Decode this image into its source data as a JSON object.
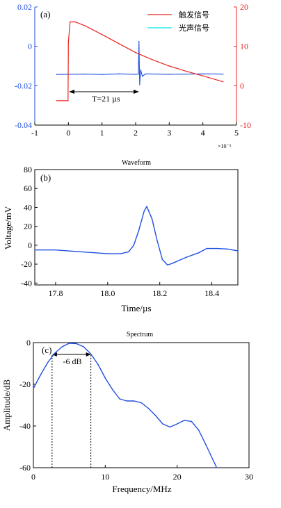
{
  "chart_data": [
    {
      "type": "line",
      "panel_label": "(a)",
      "x_ticks": [
        "-1",
        "0",
        "1",
        "2",
        "3",
        "4",
        "5"
      ],
      "x_exponent": "×10⁻⁵",
      "xlim": [
        -1,
        5
      ],
      "y_left_ticks": [
        "0.02",
        "0",
        "-0.02",
        "-0.04"
      ],
      "ylim_left": [
        -0.04,
        0.02
      ],
      "y_right_ticks": [
        "20",
        "10",
        "0",
        "-10"
      ],
      "ylim_right": [
        -10,
        20
      ],
      "annotation": "T=21 µs",
      "series": [
        {
          "name": "触发信号",
          "color": "#e8231e",
          "axis": "right",
          "x": [
            -0.35,
            -0.01,
            0.0,
            0.05,
            0.2,
            0.5,
            1.0,
            1.5,
            2.0,
            2.5,
            3.0,
            3.5,
            4.0,
            4.6
          ],
          "y": [
            -3.8,
            -3.8,
            11.0,
            16.2,
            16.2,
            15.2,
            13.0,
            10.7,
            8.4,
            6.6,
            5.0,
            3.7,
            2.5,
            1.0
          ]
        },
        {
          "name": "光声信号",
          "color": "#00e5ee",
          "axis": "left",
          "x": [
            -0.35,
            0.5,
            1.0,
            1.5,
            2.0,
            2.08,
            2.1,
            2.12,
            2.15,
            2.2,
            2.3,
            3.0,
            4.0,
            4.6
          ],
          "y": [
            -0.0143,
            -0.0141,
            -0.0143,
            -0.014,
            -0.0142,
            -0.0141,
            0.0025,
            -0.0195,
            -0.012,
            -0.0152,
            -0.014,
            -0.0142,
            -0.014,
            -0.0141
          ]
        }
      ]
    },
    {
      "type": "line",
      "title": "Waveform",
      "panel_label": "(b)",
      "xlabel": "Time/µs",
      "ylabel": "Voltage/mV",
      "xlim": [
        17.72,
        18.5
      ],
      "ylim": [
        -42,
        80
      ],
      "x_ticks": [
        "17.8",
        "18.0",
        "18.2",
        "18.4"
      ],
      "y_ticks": [
        "80",
        "60",
        "40",
        "20",
        "0",
        "-20",
        "-40"
      ],
      "series": [
        {
          "color": "#1f4fe0",
          "x": [
            17.72,
            17.8,
            17.9,
            18.0,
            18.05,
            18.08,
            18.1,
            18.12,
            18.14,
            18.15,
            18.17,
            18.19,
            18.21,
            18.23,
            18.25,
            18.3,
            18.35,
            18.38,
            18.42,
            18.46,
            18.5
          ],
          "y": [
            -5,
            -5,
            -7,
            -9,
            -9,
            -7,
            0,
            16,
            36,
            41,
            28,
            5,
            -15,
            -21,
            -19,
            -13,
            -8,
            -3.5,
            -3.5,
            -4,
            -6
          ]
        }
      ]
    },
    {
      "type": "line",
      "title": "Spectrum",
      "panel_label": "(c)",
      "xlabel": "Frequency/MHz",
      "ylabel": "Amplitude/dB",
      "xlim": [
        0,
        30
      ],
      "ylim": [
        -60,
        0
      ],
      "x_ticks": [
        "0",
        "10",
        "20",
        "30"
      ],
      "y_ticks": [
        "0",
        "-20",
        "-40",
        "-60"
      ],
      "annotation": "-6 dB",
      "marker_x": [
        2.6,
        8.0
      ],
      "marker_level": -6,
      "series": [
        {
          "color": "#1f4fe0",
          "x": [
            0,
            1,
            2,
            3,
            4,
            5,
            6,
            7,
            8,
            9,
            10,
            11,
            12,
            13,
            14,
            15,
            16,
            17,
            18,
            19,
            20,
            21,
            22,
            23,
            24,
            25.5
          ],
          "y": [
            -22,
            -15.5,
            -9.5,
            -5.0,
            -2.0,
            -0.3,
            -0.5,
            -2.0,
            -5.5,
            -10.5,
            -17.0,
            -22.5,
            -27.0,
            -28.0,
            -28.0,
            -28.8,
            -31.5,
            -35.0,
            -39.0,
            -40.5,
            -39.0,
            -37.3,
            -37.8,
            -42.0,
            -49.0,
            -60.0
          ]
        }
      ]
    }
  ]
}
